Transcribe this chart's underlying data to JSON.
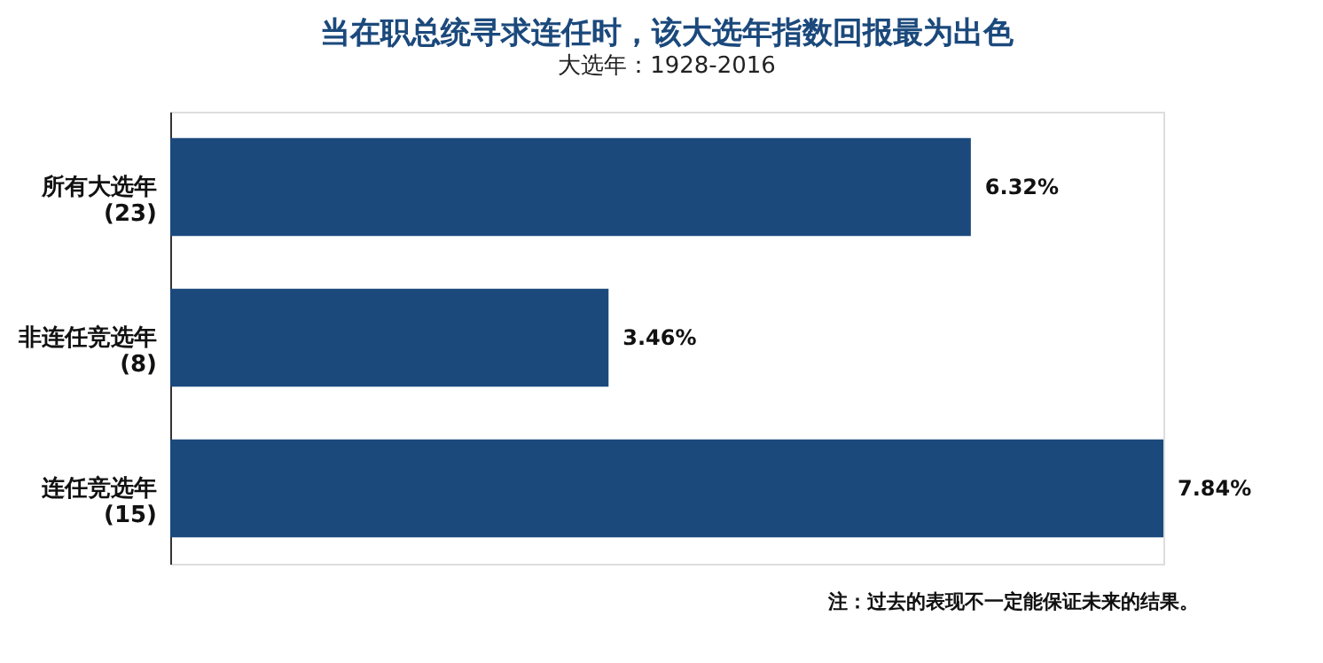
{
  "chart_data": {
    "type": "bar",
    "orientation": "horizontal",
    "title": "当在职总统寻求连任时，该大选年指数回报最为出色",
    "subtitle": "大选年：1928-2016",
    "categories": [
      "所有大选年\n(23)",
      "非连任竞选年\n(8)",
      "连任竞选年\n(15)"
    ],
    "values": [
      6.32,
      3.46,
      7.84
    ],
    "value_labels": [
      "6.32%",
      "3.46%",
      "7.84%"
    ],
    "color": "#1b497c",
    "annotations": [
      "注：过去的表现不一定能保证未来的结果。"
    ]
  }
}
